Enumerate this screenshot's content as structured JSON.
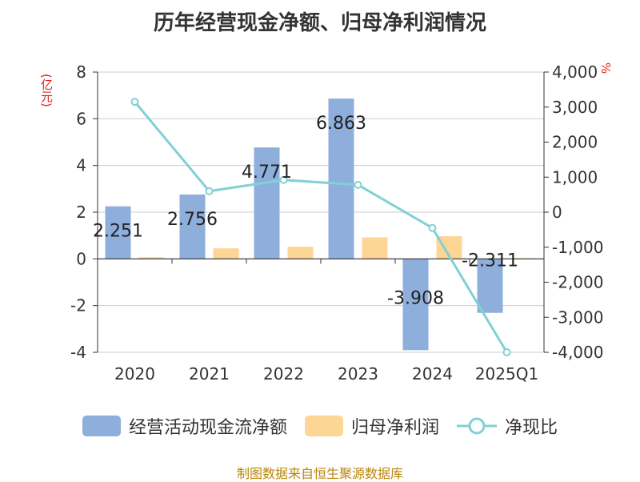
{
  "title": "历年经营现金净额、归母净利润情况",
  "units": {
    "left": "(亿元)",
    "right": "%"
  },
  "source": "制图数据来自恒生聚源数据库",
  "colors": {
    "cash": "#8eaedc",
    "profit": "#fdd595",
    "ratio": "#82d0d4"
  },
  "chart_data": {
    "type": "bar",
    "categories": [
      "2020",
      "2021",
      "2022",
      "2023",
      "2024",
      "2025Q1"
    ],
    "series": [
      {
        "name": "经营活动现金流净额",
        "axis": "left",
        "values": [
          2.251,
          2.756,
          4.771,
          6.863,
          -3.908,
          -2.311
        ],
        "labels": [
          "2.251",
          "2.756",
          "4.771",
          "6.863",
          "-3.908",
          "-2.311"
        ]
      },
      {
        "name": "归母净利润",
        "axis": "left",
        "values": [
          0.07,
          0.45,
          0.52,
          0.92,
          0.97,
          0.03
        ]
      },
      {
        "name": "净现比",
        "axis": "right",
        "type": "line",
        "values": [
          3150,
          600,
          920,
          780,
          -450,
          -4000
        ]
      }
    ],
    "left_axis": {
      "ylim": [
        -4,
        8
      ],
      "ticks": [
        "8",
        "6",
        "4",
        "2",
        "0",
        "-2",
        "-4"
      ]
    },
    "right_axis": {
      "ylim": [
        -4000,
        4000
      ],
      "ticks": [
        "4,000",
        "3,000",
        "2,000",
        "1,000",
        "0",
        "-1,000",
        "-2,000",
        "-3,000",
        "-4,000"
      ]
    },
    "grid": true,
    "legend": "bottom"
  }
}
